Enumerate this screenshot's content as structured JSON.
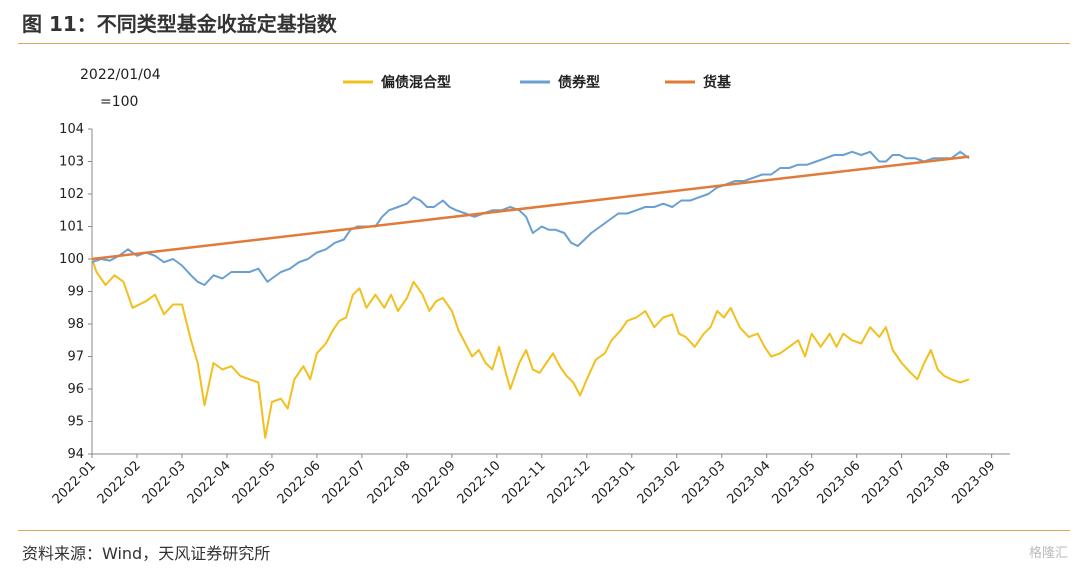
{
  "header": {
    "title": "图 11：不同类型基金收益定基指数"
  },
  "footer": {
    "source": "资料来源：Wind，天风证券研究所",
    "watermark": "格隆汇"
  },
  "chart_data": {
    "type": "line",
    "title": "图 11：不同类型基金收益定基指数",
    "base_note": [
      "2022/01/04",
      "=100"
    ],
    "x_labels": [
      "2022-01",
      "2022-02",
      "2022-03",
      "2022-04",
      "2022-05",
      "2022-06",
      "2022-07",
      "2022-08",
      "2022-09",
      "2022-10",
      "2022-11",
      "2022-12",
      "2023-01",
      "2023-02",
      "2023-03",
      "2023-04",
      "2023-05",
      "2023-06",
      "2023-07",
      "2023-08",
      "2023-09"
    ],
    "ylim": [
      94,
      104
    ],
    "y_ticks": [
      94,
      95,
      96,
      97,
      98,
      99,
      100,
      101,
      102,
      103,
      104
    ],
    "legend_position": "top",
    "grid": false,
    "series": [
      {
        "name": "偏债混合型",
        "color": "#f2c01e",
        "points": [
          [
            0,
            100.0
          ],
          [
            0.1,
            99.6
          ],
          [
            0.3,
            99.2
          ],
          [
            0.5,
            99.5
          ],
          [
            0.7,
            99.3
          ],
          [
            0.9,
            98.5
          ],
          [
            1.2,
            98.7
          ],
          [
            1.4,
            98.9
          ],
          [
            1.6,
            98.3
          ],
          [
            1.8,
            98.6
          ],
          [
            2.0,
            98.6
          ],
          [
            2.2,
            97.5
          ],
          [
            2.35,
            96.8
          ],
          [
            2.5,
            95.5
          ],
          [
            2.7,
            96.8
          ],
          [
            2.9,
            96.6
          ],
          [
            3.1,
            96.7
          ],
          [
            3.3,
            96.4
          ],
          [
            3.5,
            96.3
          ],
          [
            3.7,
            96.2
          ],
          [
            3.85,
            94.5
          ],
          [
            4.0,
            95.6
          ],
          [
            4.2,
            95.7
          ],
          [
            4.35,
            95.4
          ],
          [
            4.5,
            96.3
          ],
          [
            4.7,
            96.7
          ],
          [
            4.85,
            96.3
          ],
          [
            5.0,
            97.1
          ],
          [
            5.2,
            97.4
          ],
          [
            5.35,
            97.8
          ],
          [
            5.5,
            98.1
          ],
          [
            5.65,
            98.2
          ],
          [
            5.8,
            98.9
          ],
          [
            5.95,
            99.1
          ],
          [
            6.1,
            98.5
          ],
          [
            6.3,
            98.9
          ],
          [
            6.5,
            98.5
          ],
          [
            6.65,
            98.9
          ],
          [
            6.8,
            98.4
          ],
          [
            7.0,
            98.8
          ],
          [
            7.15,
            99.3
          ],
          [
            7.35,
            98.9
          ],
          [
            7.5,
            98.4
          ],
          [
            7.65,
            98.7
          ],
          [
            7.8,
            98.8
          ],
          [
            8.0,
            98.4
          ],
          [
            8.15,
            97.8
          ],
          [
            8.3,
            97.4
          ],
          [
            8.45,
            97.0
          ],
          [
            8.6,
            97.2
          ],
          [
            8.75,
            96.8
          ],
          [
            8.9,
            96.6
          ],
          [
            9.05,
            97.3
          ],
          [
            9.2,
            96.5
          ],
          [
            9.3,
            96.0
          ],
          [
            9.5,
            96.8
          ],
          [
            9.65,
            97.2
          ],
          [
            9.8,
            96.6
          ],
          [
            9.95,
            96.5
          ],
          [
            10.1,
            96.8
          ],
          [
            10.25,
            97.1
          ],
          [
            10.4,
            96.7
          ],
          [
            10.55,
            96.4
          ],
          [
            10.7,
            96.2
          ],
          [
            10.85,
            95.8
          ],
          [
            11.0,
            96.3
          ],
          [
            11.2,
            96.9
          ],
          [
            11.4,
            97.1
          ],
          [
            11.55,
            97.5
          ],
          [
            11.75,
            97.8
          ],
          [
            11.9,
            98.1
          ],
          [
            12.1,
            98.2
          ],
          [
            12.3,
            98.4
          ],
          [
            12.5,
            97.9
          ],
          [
            12.7,
            98.2
          ],
          [
            12.9,
            98.3
          ],
          [
            13.05,
            97.7
          ],
          [
            13.2,
            97.6
          ],
          [
            13.4,
            97.3
          ],
          [
            13.6,
            97.7
          ],
          [
            13.75,
            97.9
          ],
          [
            13.9,
            98.4
          ],
          [
            14.05,
            98.2
          ],
          [
            14.2,
            98.5
          ],
          [
            14.4,
            97.9
          ],
          [
            14.6,
            97.6
          ],
          [
            14.8,
            97.7
          ],
          [
            14.95,
            97.3
          ],
          [
            15.1,
            97.0
          ],
          [
            15.3,
            97.1
          ],
          [
            15.5,
            97.3
          ],
          [
            15.7,
            97.5
          ],
          [
            15.85,
            97.0
          ],
          [
            16.0,
            97.7
          ],
          [
            16.2,
            97.3
          ],
          [
            16.4,
            97.7
          ],
          [
            16.55,
            97.3
          ],
          [
            16.7,
            97.7
          ],
          [
            16.9,
            97.5
          ],
          [
            17.1,
            97.4
          ],
          [
            17.3,
            97.9
          ],
          [
            17.5,
            97.6
          ],
          [
            17.65,
            97.9
          ],
          [
            17.8,
            97.2
          ],
          [
            18.0,
            96.8
          ],
          [
            18.2,
            96.5
          ],
          [
            18.35,
            96.3
          ],
          [
            18.5,
            96.8
          ],
          [
            18.65,
            97.2
          ],
          [
            18.8,
            96.6
          ],
          [
            18.95,
            96.4
          ],
          [
            19.1,
            96.3
          ],
          [
            19.3,
            96.2
          ],
          [
            19.5,
            96.3
          ]
        ]
      },
      {
        "name": "债券型",
        "color": "#6a9fd1",
        "points": [
          [
            0,
            99.9
          ],
          [
            0.2,
            100.0
          ],
          [
            0.4,
            99.95
          ],
          [
            0.6,
            100.1
          ],
          [
            0.8,
            100.3
          ],
          [
            1.0,
            100.1
          ],
          [
            1.2,
            100.2
          ],
          [
            1.4,
            100.1
          ],
          [
            1.6,
            99.9
          ],
          [
            1.8,
            100.0
          ],
          [
            2.0,
            99.8
          ],
          [
            2.2,
            99.5
          ],
          [
            2.35,
            99.3
          ],
          [
            2.5,
            99.2
          ],
          [
            2.7,
            99.5
          ],
          [
            2.9,
            99.4
          ],
          [
            3.1,
            99.6
          ],
          [
            3.3,
            99.6
          ],
          [
            3.5,
            99.6
          ],
          [
            3.7,
            99.7
          ],
          [
            3.9,
            99.3
          ],
          [
            4.0,
            99.4
          ],
          [
            4.2,
            99.6
          ],
          [
            4.4,
            99.7
          ],
          [
            4.6,
            99.9
          ],
          [
            4.8,
            100.0
          ],
          [
            5.0,
            100.2
          ],
          [
            5.2,
            100.3
          ],
          [
            5.4,
            100.5
          ],
          [
            5.6,
            100.6
          ],
          [
            5.75,
            100.9
          ],
          [
            5.9,
            101.0
          ],
          [
            6.1,
            101.0
          ],
          [
            6.3,
            101.0
          ],
          [
            6.45,
            101.3
          ],
          [
            6.6,
            101.5
          ],
          [
            6.8,
            101.6
          ],
          [
            7.0,
            101.7
          ],
          [
            7.15,
            101.9
          ],
          [
            7.3,
            101.8
          ],
          [
            7.45,
            101.6
          ],
          [
            7.6,
            101.6
          ],
          [
            7.8,
            101.8
          ],
          [
            7.95,
            101.6
          ],
          [
            8.1,
            101.5
          ],
          [
            8.3,
            101.4
          ],
          [
            8.5,
            101.3
          ],
          [
            8.7,
            101.4
          ],
          [
            8.9,
            101.5
          ],
          [
            9.1,
            101.5
          ],
          [
            9.3,
            101.6
          ],
          [
            9.5,
            101.5
          ],
          [
            9.65,
            101.3
          ],
          [
            9.8,
            100.8
          ],
          [
            10.0,
            101.0
          ],
          [
            10.15,
            100.9
          ],
          [
            10.3,
            100.9
          ],
          [
            10.5,
            100.8
          ],
          [
            10.65,
            100.5
          ],
          [
            10.8,
            100.4
          ],
          [
            10.95,
            100.6
          ],
          [
            11.1,
            100.8
          ],
          [
            11.3,
            101.0
          ],
          [
            11.5,
            101.2
          ],
          [
            11.7,
            101.4
          ],
          [
            11.9,
            101.4
          ],
          [
            12.1,
            101.5
          ],
          [
            12.3,
            101.6
          ],
          [
            12.5,
            101.6
          ],
          [
            12.7,
            101.7
          ],
          [
            12.9,
            101.6
          ],
          [
            13.1,
            101.8
          ],
          [
            13.3,
            101.8
          ],
          [
            13.5,
            101.9
          ],
          [
            13.7,
            102.0
          ],
          [
            13.9,
            102.2
          ],
          [
            14.1,
            102.3
          ],
          [
            14.3,
            102.4
          ],
          [
            14.5,
            102.4
          ],
          [
            14.7,
            102.5
          ],
          [
            14.9,
            102.6
          ],
          [
            15.1,
            102.6
          ],
          [
            15.3,
            102.8
          ],
          [
            15.5,
            102.8
          ],
          [
            15.7,
            102.9
          ],
          [
            15.9,
            102.9
          ],
          [
            16.1,
            103.0
          ],
          [
            16.3,
            103.1
          ],
          [
            16.5,
            103.2
          ],
          [
            16.7,
            103.2
          ],
          [
            16.9,
            103.3
          ],
          [
            17.1,
            103.2
          ],
          [
            17.3,
            103.3
          ],
          [
            17.5,
            103.0
          ],
          [
            17.65,
            103.0
          ],
          [
            17.8,
            103.2
          ],
          [
            17.95,
            103.2
          ],
          [
            18.1,
            103.1
          ],
          [
            18.3,
            103.1
          ],
          [
            18.5,
            103.0
          ],
          [
            18.7,
            103.1
          ],
          [
            18.9,
            103.1
          ],
          [
            19.1,
            103.1
          ],
          [
            19.3,
            103.3
          ],
          [
            19.5,
            103.1
          ]
        ]
      },
      {
        "name": "货基",
        "color": "#e07b39",
        "points": [
          [
            0,
            100.0
          ],
          [
            19.5,
            103.15
          ]
        ]
      }
    ]
  }
}
